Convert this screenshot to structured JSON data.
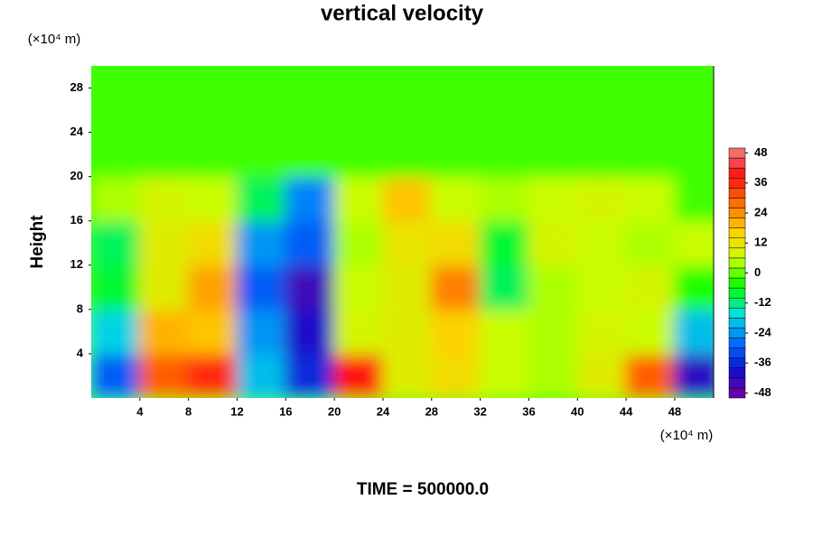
{
  "chart_data": {
    "type": "heatmap",
    "title": "vertical velocity",
    "ylabel": "Height",
    "yunit": "(×10⁴ m)",
    "xunit": "(×10⁴ m)",
    "footer": "TIME = 500000.0",
    "xlim": [
      0,
      51.2
    ],
    "ylim": [
      0,
      30
    ],
    "xticks": [
      4,
      8,
      12,
      16,
      20,
      24,
      28,
      32,
      36,
      40,
      44,
      48
    ],
    "yticks": [
      4,
      8,
      12,
      16,
      20,
      24,
      28
    ],
    "x": [
      2,
      6,
      10,
      14,
      18,
      22,
      26,
      30,
      34,
      38,
      42,
      46,
      50
    ],
    "y": [
      2,
      6,
      10,
      14,
      18,
      22,
      26,
      30
    ],
    "z": [
      [
        -30,
        30,
        36,
        -20,
        -36,
        38,
        10,
        14,
        6,
        4,
        10,
        30,
        -42
      ],
      [
        -18,
        20,
        18,
        -24,
        -40,
        8,
        10,
        16,
        6,
        4,
        8,
        6,
        -20
      ],
      [
        -8,
        10,
        22,
        -30,
        -44,
        6,
        10,
        26,
        -10,
        4,
        6,
        8,
        -4
      ],
      [
        -10,
        10,
        14,
        -24,
        -30,
        4,
        12,
        14,
        -8,
        8,
        6,
        4,
        6
      ],
      [
        4,
        8,
        6,
        -10,
        -26,
        6,
        18,
        6,
        4,
        6,
        8,
        6,
        -2
      ],
      [
        -2,
        -2,
        -2,
        -2,
        -2,
        -2,
        -2,
        -2,
        -2,
        -2,
        -2,
        -2,
        -2
      ],
      [
        -2,
        -2,
        -2,
        -2,
        -2,
        -2,
        -2,
        -2,
        -2,
        -2,
        -2,
        -2,
        -2
      ],
      [
        -2,
        -2,
        -2,
        -2,
        -2,
        -2,
        -2,
        -2,
        -2,
        -2,
        -2,
        -2,
        -2
      ]
    ],
    "zlim": [
      -50,
      50
    ],
    "zticks": [
      -48,
      -36,
      -24,
      -12,
      0,
      12,
      24,
      36,
      48
    ],
    "colors": [
      "#7a00a0",
      "#1010d0",
      "#0070ff",
      "#00e0e0",
      "#00ff00",
      "#c8ff00",
      "#ffd000",
      "#ff7000",
      "#ff1010",
      "#f08080"
    ]
  }
}
